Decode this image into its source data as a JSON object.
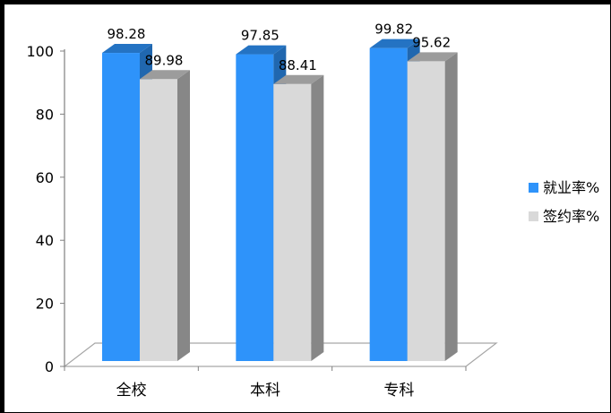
{
  "chart_data": {
    "type": "bar",
    "style": "3d-clustered-column",
    "categories": [
      "全校",
      "本科",
      "专科"
    ],
    "series": [
      {
        "name": "就业率%",
        "values": [
          98.28,
          97.85,
          99.82
        ],
        "color": "#2e93fa"
      },
      {
        "name": "签约率%",
        "values": [
          89.98,
          88.41,
          95.62
        ],
        "color": "#d9d9d9"
      }
    ],
    "data_labels": [
      [
        "98.28",
        "97.85",
        "99.82"
      ],
      [
        "89.98",
        "88.41",
        "95.62"
      ]
    ],
    "yticks": [
      "0",
      "20",
      "40",
      "60",
      "80",
      "100"
    ],
    "ylim": [
      0,
      100
    ],
    "legend_position": "right",
    "grid": false
  }
}
